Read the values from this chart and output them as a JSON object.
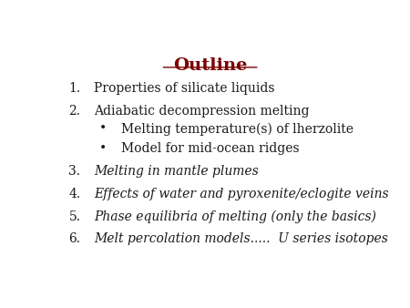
{
  "title": "Outline",
  "title_color": "#7B0000",
  "title_fontsize": 14,
  "background_color": "#ffffff",
  "items": [
    {
      "num": "1.",
      "text": "Properties of silicate liquids",
      "italic": false,
      "bullet": false
    },
    {
      "num": "2.",
      "text": "Adiabatic decompression melting",
      "italic": false,
      "bullet": false
    },
    {
      "num": "•",
      "text": "Melting temperature(s) of lherzolite",
      "italic": false,
      "bullet": true
    },
    {
      "num": "•",
      "text": "Model for mid-ocean ridges",
      "italic": false,
      "bullet": true
    },
    {
      "num": "3.",
      "text": "Melting in mantle plumes",
      "italic": true,
      "bullet": false
    },
    {
      "num": "4.",
      "text": "Effects of water and pyroxenite/eclogite veins",
      "italic": true,
      "bullet": false
    },
    {
      "num": "5.",
      "text": "Phase equilibria of melting (only the basics)",
      "italic": true,
      "bullet": false
    },
    {
      "num": "6.",
      "text": "Melt percolation models.....  U series isotopes",
      "italic": true,
      "bullet": false
    }
  ],
  "text_color": "#1a1a1a",
  "base_fontsize": 10,
  "figsize": [
    4.5,
    3.38
  ],
  "dpi": 100
}
